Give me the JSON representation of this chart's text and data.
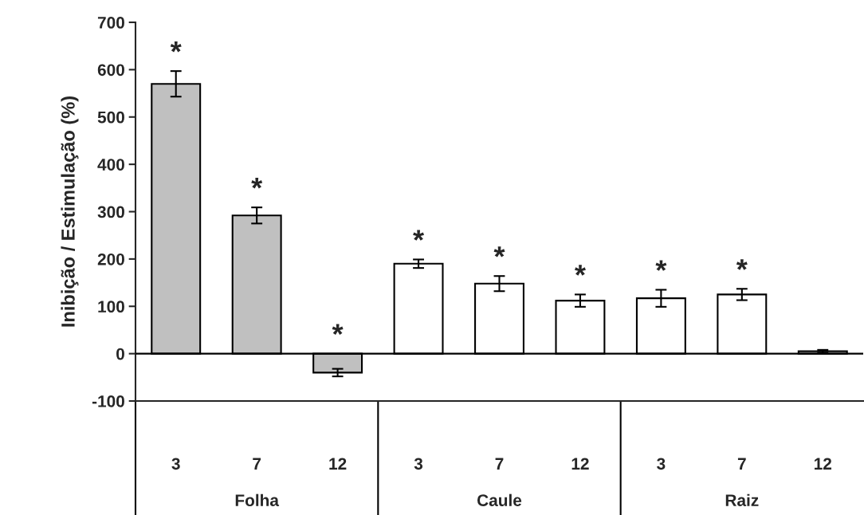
{
  "chart_data": {
    "type": "bar",
    "ylabel": "Inibição / Estimulação (%)",
    "categories": [
      "3",
      "7",
      "12",
      "3",
      "7",
      "12",
      "3",
      "7",
      "12"
    ],
    "values": [
      570,
      292,
      -40,
      190,
      148,
      112,
      117,
      125,
      5
    ],
    "errors": [
      27,
      17,
      8,
      9,
      16,
      13,
      18,
      12,
      3
    ],
    "colors": [
      "#c0c0c0",
      "#c0c0c0",
      "#c0c0c0",
      "#ffffff",
      "#ffffff",
      "#ffffff",
      "#ffffff",
      "#ffffff",
      "#ffffff"
    ],
    "value_labels": [
      "*",
      "*",
      "*",
      "*",
      "*",
      "*",
      "*",
      "*",
      null
    ],
    "annotations": [
      "Folha",
      "Caule",
      "Raiz"
    ],
    "ref_lines": [
      {
        "axis": "y",
        "value": 0
      }
    ],
    "ylim": [
      -100,
      700
    ],
    "yticks": [
      -100,
      0,
      100,
      200,
      300,
      400,
      500,
      600,
      700
    ],
    "grid": false
  }
}
